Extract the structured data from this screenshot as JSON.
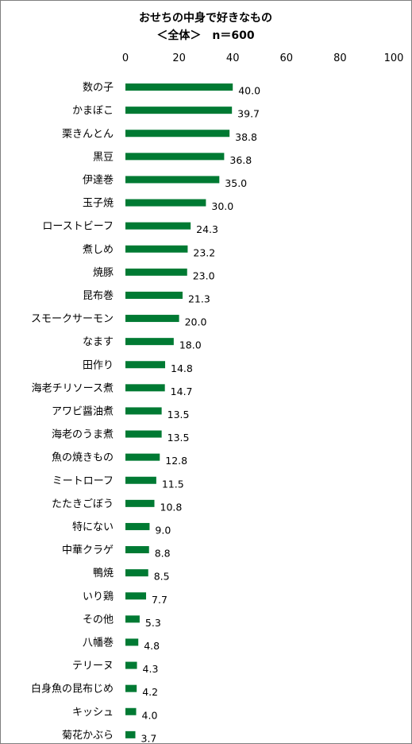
{
  "chart_data": {
    "type": "bar",
    "orientation": "horizontal",
    "title": "おせちの中身で好きなもの",
    "subtitle": "＜全体＞　n＝600",
    "xlim": [
      0,
      100
    ],
    "ticks": [
      "0",
      "20",
      "40",
      "60",
      "80",
      "100"
    ],
    "tick_values": [
      0,
      20,
      40,
      60,
      80,
      100
    ],
    "color": "#007a33",
    "categories": [
      "数の子",
      "かまぼこ",
      "栗きんとん",
      "黒豆",
      "伊達巻",
      "玉子焼",
      "ローストビーフ",
      "煮しめ",
      "焼豚",
      "昆布巻",
      "スモークサーモン",
      "なます",
      "田作り",
      "海老チリソース煮",
      "アワビ醤油煮",
      "海老のうま煮",
      "魚の焼きもの",
      "ミートローフ",
      "たたきごぼう",
      "特にない",
      "中華クラゲ",
      "鴨焼",
      "いり鶏",
      "その他",
      "八幡巻",
      "テリーヌ",
      "白身魚の昆布じめ",
      "キッシュ",
      "菊花かぶら"
    ],
    "values": [
      40.0,
      39.7,
      38.8,
      36.8,
      35.0,
      30.0,
      24.3,
      23.2,
      23.0,
      21.3,
      20.0,
      18.0,
      14.8,
      14.7,
      13.5,
      13.5,
      12.8,
      11.5,
      10.8,
      9.0,
      8.8,
      8.5,
      7.7,
      5.3,
      4.8,
      4.3,
      4.2,
      4.0,
      3.7
    ],
    "value_labels": [
      "40.0",
      "39.7",
      "38.8",
      "36.8",
      "35.0",
      "30.0",
      "24.3",
      "23.2",
      "23.0",
      "21.3",
      "20.0",
      "18.0",
      "14.8",
      "14.7",
      "13.5",
      "13.5",
      "12.8",
      "11.5",
      "10.8",
      "9.0",
      "8.8",
      "8.5",
      "7.7",
      "5.3",
      "4.8",
      "4.3",
      "4.2",
      "4.0",
      "3.7"
    ],
    "grid": false,
    "legend": "none"
  }
}
